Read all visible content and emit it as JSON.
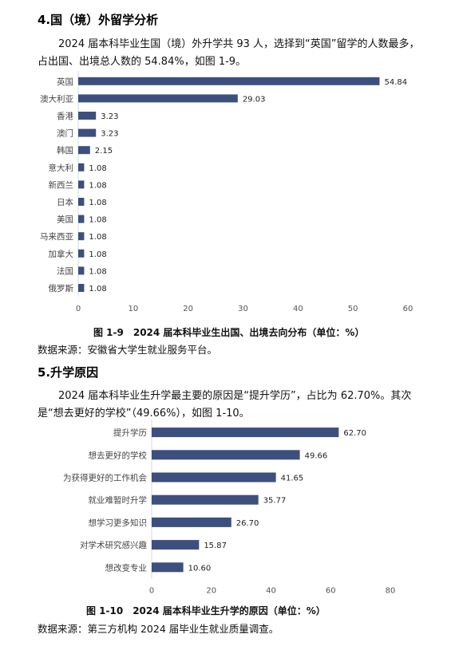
{
  "section4": {
    "heading": "4.国（境）外留学分析",
    "paragraph": "2024 届本科毕业生国（境）外升学共 93 人，选择到“英国”留学的人数最多，占出国、出境总人数的 54.84%，如图 1-9。",
    "caption": "图 1-9　2024 届本科毕业生出国、出境去向分布（单位：%）",
    "source": "数据来源：安徽省大学生就业服务平台。"
  },
  "section5": {
    "heading": "5.升学原因",
    "paragraph": "2024 届本科毕业生升学最主要的原因是“提升学历”，占比为 62.70%。其次是“想去更好的学校”（49.66%），如图 1-10。",
    "caption": "图 1-10　2024 届本科毕业生升学的原因（单位：%）",
    "source": "数据来源：第三方机构 2024 届毕业生就业质量调查。"
  },
  "colors": {
    "bar": "#3d4f7d",
    "axis": "#d9d9d9"
  },
  "chart_data": [
    {
      "type": "bar",
      "orientation": "horizontal",
      "title": "",
      "categories": [
        "英国",
        "澳大利亚",
        "香港",
        "澳门",
        "韩国",
        "意大利",
        "新西兰",
        "日本",
        "美国",
        "马来西亚",
        "加拿大",
        "法国",
        "俄罗斯"
      ],
      "values": [
        54.84,
        29.03,
        3.23,
        3.23,
        2.15,
        1.08,
        1.08,
        1.08,
        1.08,
        1.08,
        1.08,
        1.08,
        1.08
      ],
      "value_labels": [
        "54.84",
        "29.03",
        "3.23",
        "3.23",
        "2.15",
        "1.08",
        "1.08",
        "1.08",
        "1.08",
        "1.08",
        "1.08",
        "1.08",
        "1.08"
      ],
      "xlim": [
        0,
        60
      ],
      "xticks": [
        "0",
        "10",
        "20",
        "30",
        "40",
        "50",
        "60"
      ],
      "grid": false
    },
    {
      "type": "bar",
      "orientation": "horizontal",
      "title": "",
      "categories": [
        "提升学历",
        "想去更好的学校",
        "为获得更好的工作机会",
        "就业难暂时升学",
        "想学习更多知识",
        "对学术研究感兴趣",
        "想改变专业"
      ],
      "values": [
        62.7,
        49.66,
        41.65,
        35.77,
        26.7,
        15.87,
        10.6
      ],
      "value_labels": [
        "62.70",
        "49.66",
        "41.65",
        "35.77",
        "26.70",
        "15.87",
        "10.60"
      ],
      "xlim": [
        0,
        80
      ],
      "xticks": [
        "0",
        "20",
        "40",
        "60",
        "80"
      ],
      "grid": false
    }
  ]
}
